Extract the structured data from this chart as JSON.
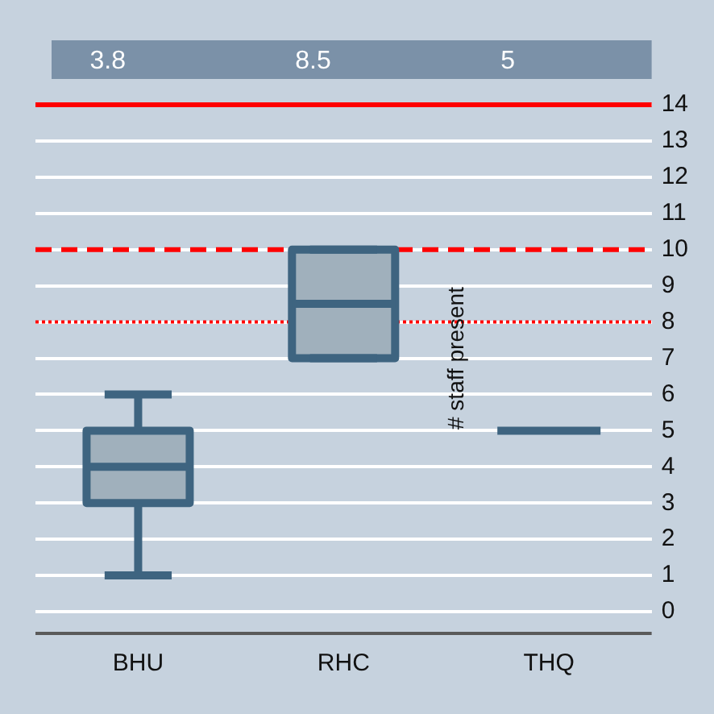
{
  "chart_data": {
    "type": "box",
    "ylabel": "# staff present",
    "categories": [
      "BHU",
      "RHC",
      "THQ"
    ],
    "boxes": [
      {
        "low": 1,
        "q1": 3,
        "median": 4,
        "q3": 5,
        "high": 6
      },
      {
        "low": 7,
        "q1": 7,
        "median": 8.5,
        "q3": 10,
        "high": 10
      },
      {
        "low": 5,
        "q1": 5,
        "median": 5,
        "q3": 5,
        "high": 5
      }
    ],
    "color": "#3e6480",
    "ylim": [
      -0.6,
      14
    ],
    "yticks": [
      0,
      1,
      2,
      3,
      4,
      5,
      6,
      7,
      8,
      9,
      10,
      11,
      12,
      13,
      14
    ],
    "grid": "y",
    "ref_lines": [
      {
        "axis": "y",
        "value": 14,
        "color": "#ff0000",
        "line_style": "solid"
      },
      {
        "axis": "y",
        "value": 10,
        "color": "#ff0000",
        "line_style": "dashed"
      },
      {
        "axis": "y",
        "value": 8,
        "color": "#ff0000",
        "line_style": "dotted"
      }
    ],
    "annotations": [
      "3.8",
      "8.5",
      "5"
    ]
  }
}
